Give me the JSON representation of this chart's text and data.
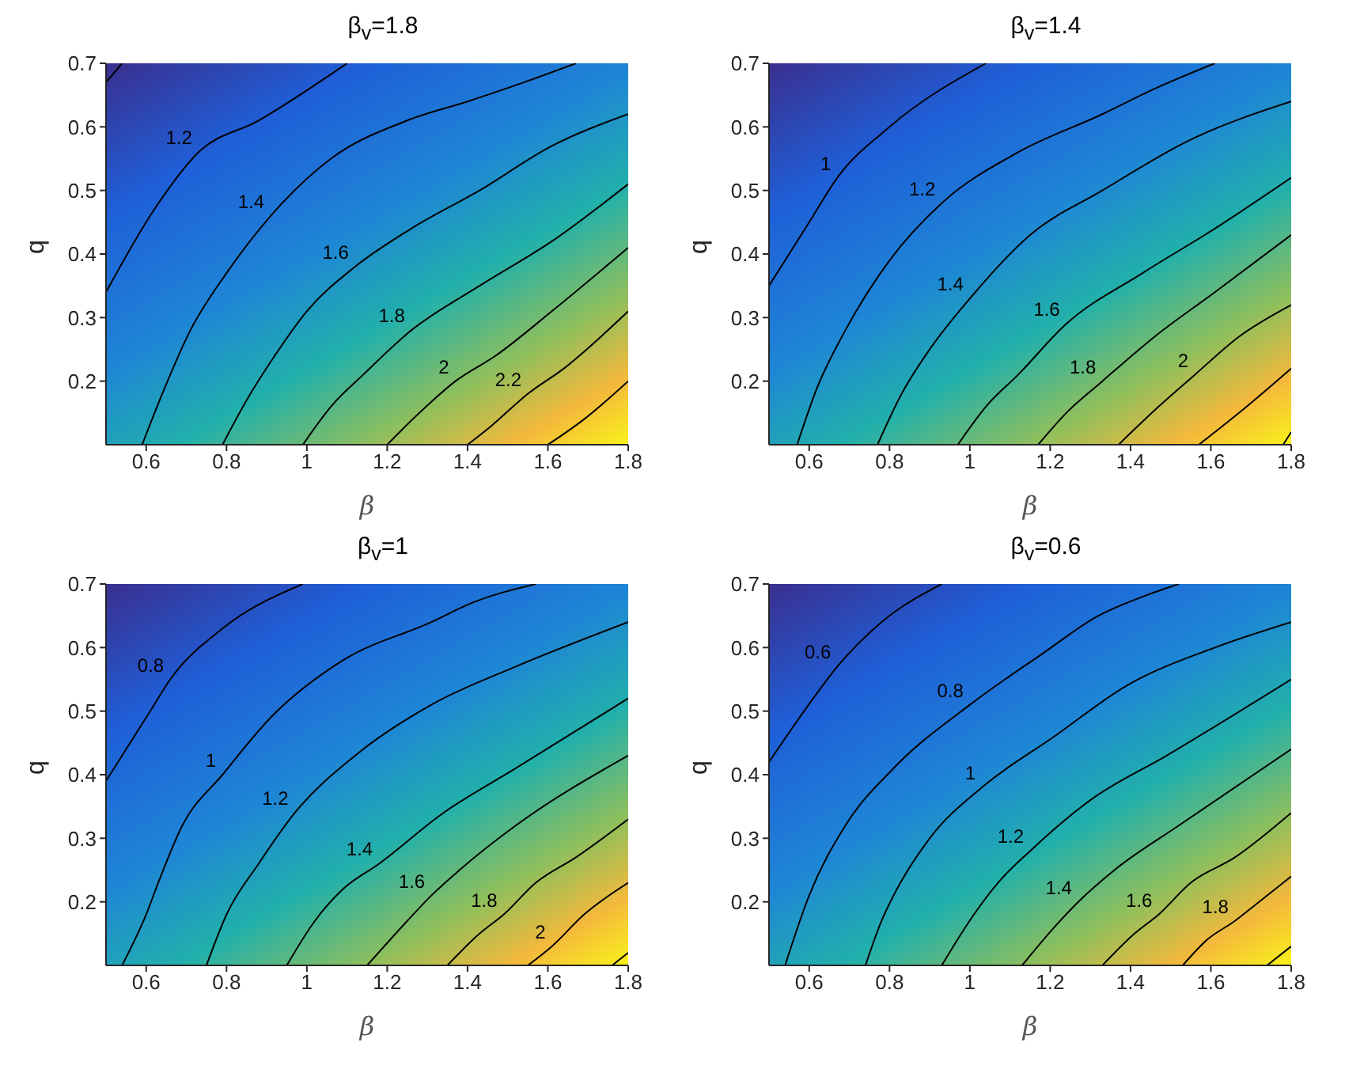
{
  "chart_data": [
    {
      "type": "line",
      "title": "β$_{v}$=1.8",
      "xlabel": "β",
      "ylabel": "q",
      "xlim": [
        0.5,
        1.8
      ],
      "ylim": [
        0.1,
        0.7
      ],
      "xticks": [
        0.6,
        0.8,
        1,
        1.2,
        1.4,
        1.6,
        1.8
      ],
      "yticks": [
        0.2,
        0.3,
        0.4,
        0.5,
        0.6,
        0.7
      ],
      "grid": false,
      "legend": false,
      "marker": "none",
      "line_style": "solid",
      "series": [
        {
          "color": "#000000",
          "x": [
            0.5,
            0.54
          ],
          "values": [
            0.67,
            0.7
          ]
        },
        {
          "name": "1.2",
          "color": "#000000",
          "x": [
            0.5,
            0.62,
            0.73,
            0.88,
            1.1
          ],
          "values": [
            0.34,
            0.47,
            0.56,
            0.61,
            0.7
          ]
        },
        {
          "name": "1.4",
          "color": "#000000",
          "x": [
            0.59,
            0.64,
            0.71,
            0.8,
            0.91,
            1.06,
            1.25,
            1.4,
            1.54,
            1.67
          ],
          "values": [
            0.1,
            0.18,
            0.28,
            0.37,
            0.46,
            0.55,
            0.61,
            0.64,
            0.67,
            0.7
          ]
        },
        {
          "name": "1.6",
          "color": "#000000",
          "x": [
            0.79,
            0.85,
            0.92,
            1.0,
            1.12,
            1.26,
            1.43,
            1.61,
            1.8
          ],
          "values": [
            0.1,
            0.17,
            0.24,
            0.31,
            0.38,
            0.44,
            0.5,
            0.57,
            0.62
          ]
        },
        {
          "name": "1.8",
          "color": "#000000",
          "x": [
            0.99,
            1.06,
            1.14,
            1.26,
            1.43,
            1.61,
            1.8
          ],
          "values": [
            0.1,
            0.16,
            0.21,
            0.28,
            0.35,
            0.42,
            0.51
          ]
        },
        {
          "name": "2",
          "color": "#000000",
          "x": [
            1.2,
            1.28,
            1.37,
            1.47,
            1.61,
            1.8
          ],
          "values": [
            0.1,
            0.15,
            0.2,
            0.24,
            0.31,
            0.41
          ]
        },
        {
          "name": "2.2",
          "color": "#000000",
          "x": [
            1.4,
            1.46,
            1.55,
            1.64,
            1.8
          ],
          "values": [
            0.1,
            0.13,
            0.18,
            0.22,
            0.31
          ]
        },
        {
          "color": "#000000",
          "x": [
            1.6,
            1.69,
            1.8
          ],
          "values": [
            0.1,
            0.14,
            0.2
          ]
        }
      ]
    },
    {
      "type": "line",
      "title": "β$_{v}$=1.4",
      "xlabel": "β",
      "ylabel": "q",
      "xlim": [
        0.5,
        1.8
      ],
      "ylim": [
        0.1,
        0.7
      ],
      "xticks": [
        0.6,
        0.8,
        1,
        1.2,
        1.4,
        1.6,
        1.8
      ],
      "yticks": [
        0.2,
        0.3,
        0.4,
        0.5,
        0.6,
        0.7
      ],
      "grid": false,
      "legend": false,
      "marker": "none",
      "line_style": "solid",
      "series": [
        {
          "name": "1",
          "color": "#000000",
          "x": [
            0.5,
            0.6,
            0.67,
            0.8,
            1.04
          ],
          "values": [
            0.35,
            0.45,
            0.52,
            0.6,
            0.7
          ]
        },
        {
          "name": "1.2",
          "color": "#000000",
          "x": [
            0.57,
            0.62,
            0.69,
            0.8,
            0.93,
            1.12,
            1.33,
            1.46,
            1.61
          ],
          "values": [
            0.1,
            0.19,
            0.28,
            0.39,
            0.48,
            0.56,
            0.62,
            0.66,
            0.7
          ]
        },
        {
          "name": "1.4",
          "color": "#000000",
          "x": [
            0.77,
            0.83,
            0.9,
            1.0,
            1.15,
            1.33,
            1.55,
            1.8
          ],
          "values": [
            0.1,
            0.18,
            0.25,
            0.33,
            0.43,
            0.5,
            0.58,
            0.64
          ]
        },
        {
          "name": "1.6",
          "color": "#000000",
          "x": [
            0.97,
            1.04,
            1.12,
            1.24,
            1.43,
            1.61,
            1.8
          ],
          "values": [
            0.1,
            0.16,
            0.21,
            0.29,
            0.37,
            0.44,
            0.52
          ]
        },
        {
          "name": "1.8",
          "color": "#000000",
          "x": [
            1.17,
            1.24,
            1.33,
            1.46,
            1.61,
            1.8
          ],
          "values": [
            0.1,
            0.15,
            0.2,
            0.27,
            0.34,
            0.43
          ]
        },
        {
          "name": "2",
          "color": "#000000",
          "x": [
            1.37,
            1.47,
            1.56,
            1.67,
            1.8
          ],
          "values": [
            0.1,
            0.16,
            0.21,
            0.27,
            0.32
          ]
        },
        {
          "color": "#000000",
          "x": [
            1.57,
            1.67,
            1.8
          ],
          "values": [
            0.1,
            0.15,
            0.22
          ]
        },
        {
          "color": "#000000",
          "x": [
            1.78,
            1.8
          ],
          "values": [
            0.1,
            0.12
          ]
        }
      ]
    },
    {
      "type": "line",
      "title": "β$_{v}$=1",
      "xlabel": "β",
      "ylabel": "q",
      "xlim": [
        0.5,
        1.8
      ],
      "ylim": [
        0.1,
        0.7
      ],
      "xticks": [
        0.6,
        0.8,
        1,
        1.2,
        1.4,
        1.6,
        1.8
      ],
      "yticks": [
        0.2,
        0.3,
        0.4,
        0.5,
        0.6,
        0.7
      ],
      "grid": false,
      "legend": false,
      "marker": "none",
      "line_style": "solid",
      "series": [
        {
          "name": "0.8",
          "color": "#000000",
          "x": [
            0.5,
            0.61,
            0.66,
            0.79,
            0.99
          ],
          "values": [
            0.39,
            0.5,
            0.55,
            0.63,
            0.7
          ]
        },
        {
          "name": "1",
          "color": "#000000",
          "x": [
            0.54,
            0.6,
            0.63,
            0.69,
            0.79,
            0.91,
            1.09,
            1.31,
            1.41,
            1.57
          ],
          "values": [
            0.1,
            0.18,
            0.23,
            0.32,
            0.4,
            0.49,
            0.58,
            0.64,
            0.67,
            0.7
          ]
        },
        {
          "name": "1.2",
          "color": "#000000",
          "x": [
            0.75,
            0.8,
            0.88,
            0.97,
            1.12,
            1.31,
            1.52,
            1.8
          ],
          "values": [
            0.1,
            0.18,
            0.26,
            0.34,
            0.43,
            0.51,
            0.57,
            0.64
          ]
        },
        {
          "name": "1.4",
          "color": "#000000",
          "x": [
            0.95,
            1.02,
            1.09,
            1.18,
            1.34,
            1.52,
            1.8
          ],
          "values": [
            0.1,
            0.17,
            0.22,
            0.26,
            0.34,
            0.41,
            0.52
          ]
        },
        {
          "name": "1.6",
          "color": "#000000",
          "x": [
            1.15,
            1.25,
            1.31,
            1.38,
            1.52,
            1.8
          ],
          "values": [
            0.1,
            0.17,
            0.21,
            0.25,
            0.32,
            0.43
          ]
        },
        {
          "name": "1.8",
          "color": "#000000",
          "x": [
            1.35,
            1.43,
            1.49,
            1.57,
            1.67,
            1.8
          ],
          "values": [
            0.1,
            0.15,
            0.18,
            0.23,
            0.27,
            0.33
          ]
        },
        {
          "name": "2",
          "color": "#000000",
          "x": [
            1.55,
            1.61,
            1.69,
            1.8
          ],
          "values": [
            0.1,
            0.13,
            0.18,
            0.23
          ]
        },
        {
          "color": "#000000",
          "x": [
            1.76,
            1.8
          ],
          "values": [
            0.1,
            0.12
          ]
        }
      ]
    },
    {
      "type": "line",
      "title": "β$_{v}$=0.6",
      "xlabel": "β",
      "ylabel": "q",
      "xlim": [
        0.5,
        1.8
      ],
      "ylim": [
        0.1,
        0.7
      ],
      "xticks": [
        0.6,
        0.8,
        1,
        1.2,
        1.4,
        1.6,
        1.8
      ],
      "yticks": [
        0.2,
        0.3,
        0.4,
        0.5,
        0.6,
        0.7
      ],
      "grid": false,
      "legend": false,
      "marker": "none",
      "line_style": "solid",
      "series": [
        {
          "name": "0.6",
          "color": "#000000",
          "x": [
            0.5,
            0.61,
            0.67,
            0.78,
            0.93
          ],
          "values": [
            0.42,
            0.52,
            0.57,
            0.64,
            0.7
          ]
        },
        {
          "name": "0.8",
          "color": "#000000",
          "x": [
            0.54,
            0.6,
            0.69,
            0.81,
            1.0,
            1.18,
            1.32,
            1.43,
            1.52
          ],
          "values": [
            0.1,
            0.21,
            0.32,
            0.41,
            0.51,
            0.59,
            0.65,
            0.68,
            0.7
          ]
        },
        {
          "name": "1",
          "color": "#000000",
          "x": [
            0.74,
            0.78,
            0.81,
            0.9,
            1.03,
            1.21,
            1.39,
            1.61,
            1.8
          ],
          "values": [
            0.1,
            0.17,
            0.21,
            0.3,
            0.38,
            0.46,
            0.54,
            0.6,
            0.64
          ]
        },
        {
          "name": "1.2",
          "color": "#000000",
          "x": [
            0.93,
            1.01,
            1.07,
            1.15,
            1.3,
            1.49,
            1.8
          ],
          "values": [
            0.1,
            0.18,
            0.23,
            0.28,
            0.36,
            0.43,
            0.55
          ]
        },
        {
          "name": "1.4",
          "color": "#000000",
          "x": [
            1.13,
            1.21,
            1.27,
            1.36,
            1.52,
            1.8
          ],
          "values": [
            0.1,
            0.16,
            0.2,
            0.25,
            0.32,
            0.44
          ]
        },
        {
          "name": "1.6",
          "color": "#000000",
          "x": [
            1.33,
            1.41,
            1.47,
            1.55,
            1.66,
            1.8
          ],
          "values": [
            0.1,
            0.15,
            0.18,
            0.23,
            0.27,
            0.34
          ]
        },
        {
          "name": "1.8",
          "color": "#000000",
          "x": [
            1.53,
            1.59,
            1.66,
            1.72,
            1.8
          ],
          "values": [
            0.1,
            0.14,
            0.17,
            0.2,
            0.24
          ]
        },
        {
          "color": "#000000",
          "x": [
            1.74,
            1.8
          ],
          "values": [
            0.1,
            0.13
          ]
        }
      ]
    }
  ]
}
